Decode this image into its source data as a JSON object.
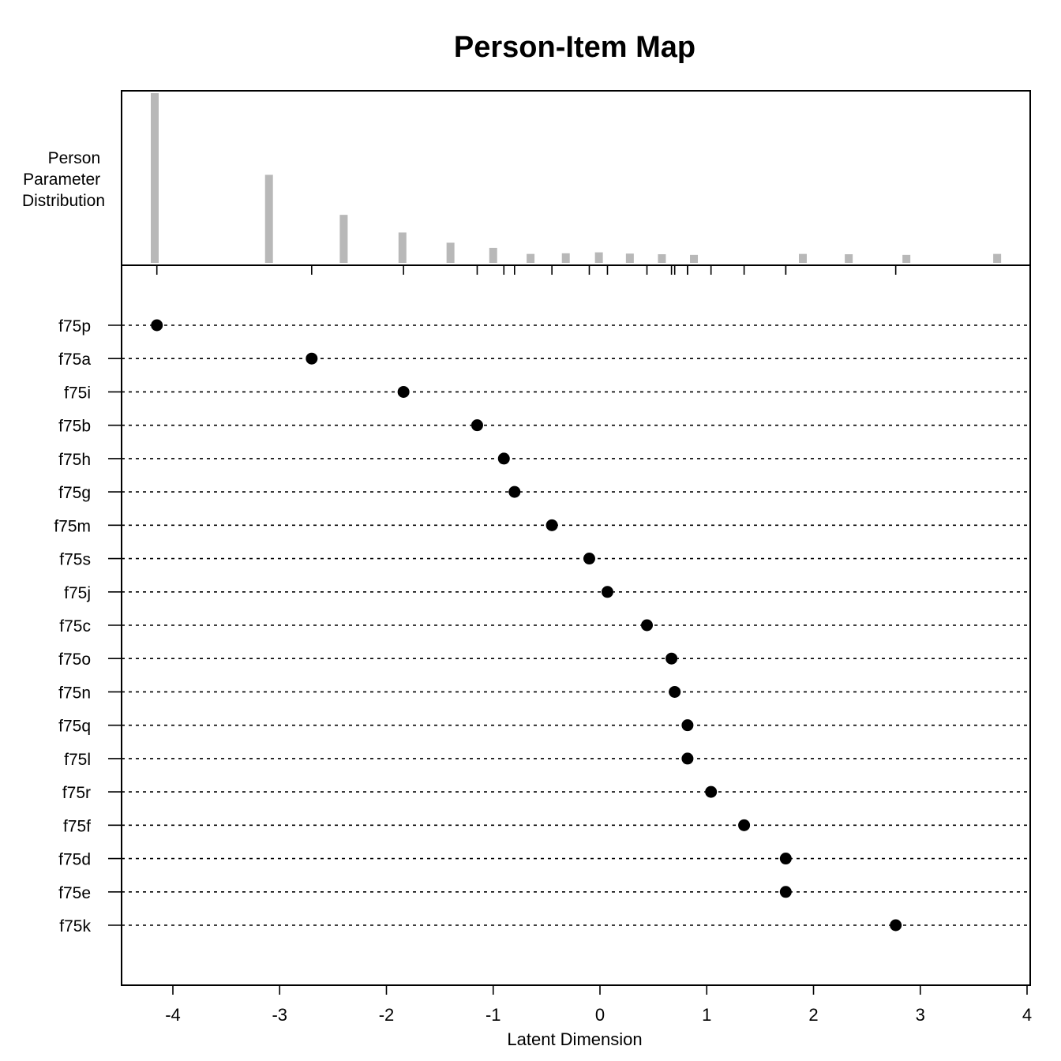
{
  "chart_data": {
    "type": "scatter",
    "title": "Person-Item Map",
    "xlabel": "Latent Dimension",
    "xlim": [
      -4.5,
      4.02
    ],
    "x_ticks": [
      -4,
      -3,
      -2,
      -1,
      0,
      1,
      2,
      3,
      4
    ],
    "x_tick_labels": [
      "-4",
      "-3",
      "-2",
      "-1",
      "0",
      "1",
      "2",
      "3",
      "4"
    ],
    "person_distribution": {
      "label_lines": [
        "Person",
        "Parameter",
        "Distribution"
      ],
      "color": "#b8b8b8",
      "bars": [
        {
          "x": -4.17,
          "count": 53
        },
        {
          "x": -3.1,
          "count": 27.5
        },
        {
          "x": -2.4,
          "count": 15
        },
        {
          "x": -1.85,
          "count": 9.5
        },
        {
          "x": -1.4,
          "count": 6.3
        },
        {
          "x": -1.0,
          "count": 4.7
        },
        {
          "x": -0.65,
          "count": 2.8
        },
        {
          "x": -0.32,
          "count": 3
        },
        {
          "x": -0.01,
          "count": 3.3
        },
        {
          "x": 0.28,
          "count": 2.9
        },
        {
          "x": 0.58,
          "count": 2.7
        },
        {
          "x": 0.88,
          "count": 2.5
        },
        {
          "x": 1.9,
          "count": 2.8
        },
        {
          "x": 2.33,
          "count": 2.7
        },
        {
          "x": 2.87,
          "count": 2.5
        },
        {
          "x": 3.72,
          "count": 2.8
        }
      ]
    },
    "items": [
      {
        "name": "f75p",
        "location": -4.15
      },
      {
        "name": "f75a",
        "location": -2.7
      },
      {
        "name": "f75i",
        "location": -1.84
      },
      {
        "name": "f75b",
        "location": -1.15
      },
      {
        "name": "f75h",
        "location": -0.9
      },
      {
        "name": "f75g",
        "location": -0.8
      },
      {
        "name": "f75m",
        "location": -0.45
      },
      {
        "name": "f75s",
        "location": -0.1
      },
      {
        "name": "f75j",
        "location": 0.07
      },
      {
        "name": "f75c",
        "location": 0.44
      },
      {
        "name": "f75o",
        "location": 0.67
      },
      {
        "name": "f75n",
        "location": 0.7
      },
      {
        "name": "f75q",
        "location": 0.82
      },
      {
        "name": "f75l",
        "location": 0.82
      },
      {
        "name": "f75r",
        "location": 1.04
      },
      {
        "name": "f75f",
        "location": 1.35
      },
      {
        "name": "f75d",
        "location": 1.74
      },
      {
        "name": "f75e",
        "location": 1.74
      },
      {
        "name": "f75k",
        "location": 2.77
      }
    ]
  }
}
